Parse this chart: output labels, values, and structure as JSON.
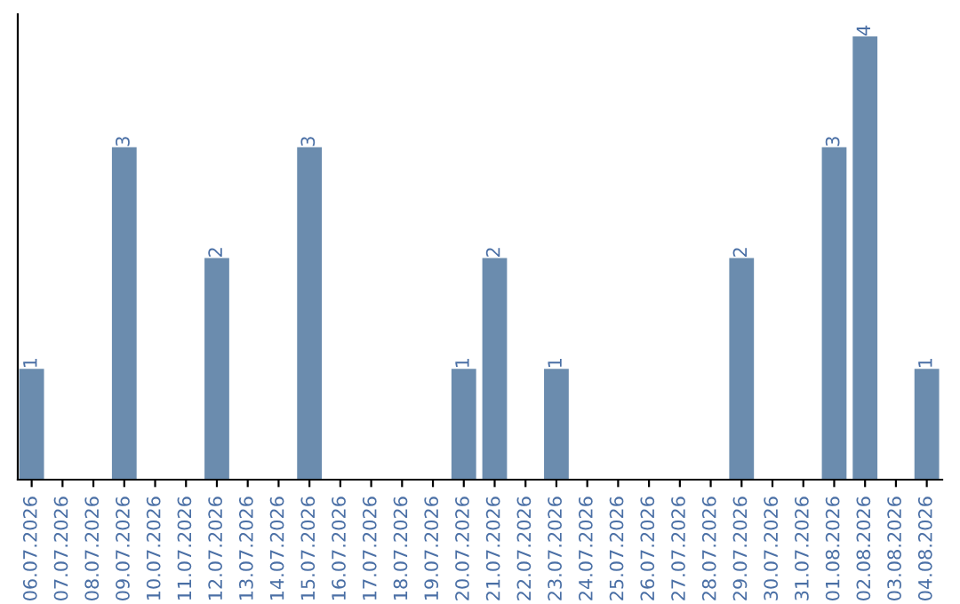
{
  "chart_data": {
    "type": "bar",
    "categories": [
      "06.07.2026",
      "07.07.2026",
      "08.07.2026",
      "09.07.2026",
      "10.07.2026",
      "11.07.2026",
      "12.07.2026",
      "13.07.2026",
      "14.07.2026",
      "15.07.2026",
      "16.07.2026",
      "17.07.2026",
      "18.07.2026",
      "19.07.2026",
      "20.07.2026",
      "21.07.2026",
      "22.07.2026",
      "23.07.2026",
      "24.07.2026",
      "25.07.2026",
      "26.07.2026",
      "27.07.2026",
      "28.07.2026",
      "29.07.2026",
      "30.07.2026",
      "31.07.2026",
      "01.08.2026",
      "02.08.2026",
      "03.08.2026",
      "04.08.2026"
    ],
    "values": [
      1,
      0,
      0,
      3,
      0,
      0,
      2,
      0,
      0,
      3,
      0,
      0,
      0,
      0,
      1,
      2,
      0,
      1,
      0,
      0,
      0,
      0,
      0,
      2,
      0,
      0,
      3,
      4,
      0,
      1
    ],
    "value_labels": [
      "1",
      null,
      null,
      "3",
      null,
      null,
      "2",
      null,
      null,
      "3",
      null,
      null,
      null,
      null,
      "1",
      "2",
      null,
      "1",
      null,
      null,
      null,
      null,
      null,
      "2",
      null,
      null,
      "3",
      "4",
      null,
      "1"
    ],
    "color": "#6b8cae",
    "grid": false,
    "tick_labels": "x"
  }
}
